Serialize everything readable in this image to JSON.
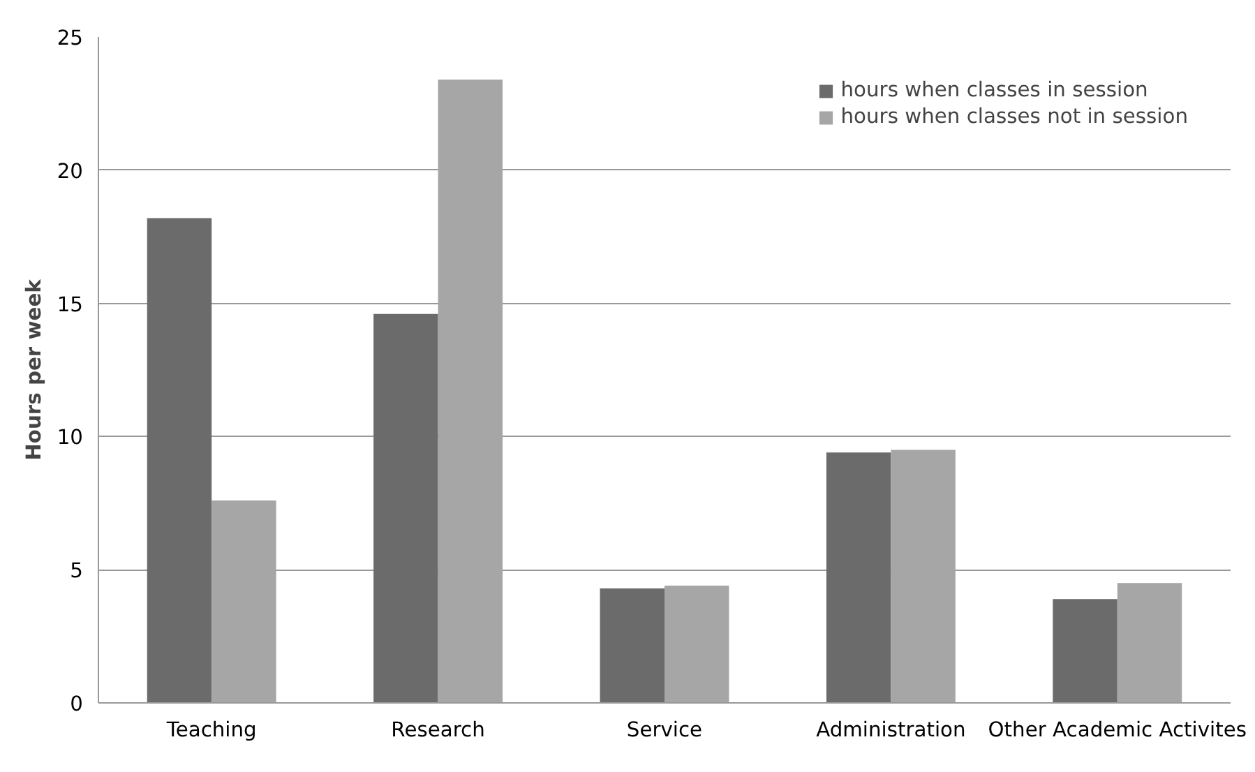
{
  "chart_data": {
    "type": "bar",
    "ylabel": "Hours per week",
    "categories": [
      "Teaching",
      "Research",
      "Service",
      "Administration",
      "Other Academic Activites"
    ],
    "series": [
      {
        "name": "hours when classes in session",
        "color": "#6b6b6b",
        "values": [
          18.2,
          14.6,
          4.3,
          9.4,
          3.9
        ]
      },
      {
        "name": "hours when classes not in session",
        "color": "#a6a6a6",
        "values": [
          7.6,
          23.4,
          4.4,
          9.5,
          4.5
        ]
      }
    ],
    "ylim": [
      0,
      25
    ],
    "yticks": [
      0,
      5,
      10,
      15,
      20,
      25
    ],
    "grid": "y",
    "legend": "top right"
  }
}
